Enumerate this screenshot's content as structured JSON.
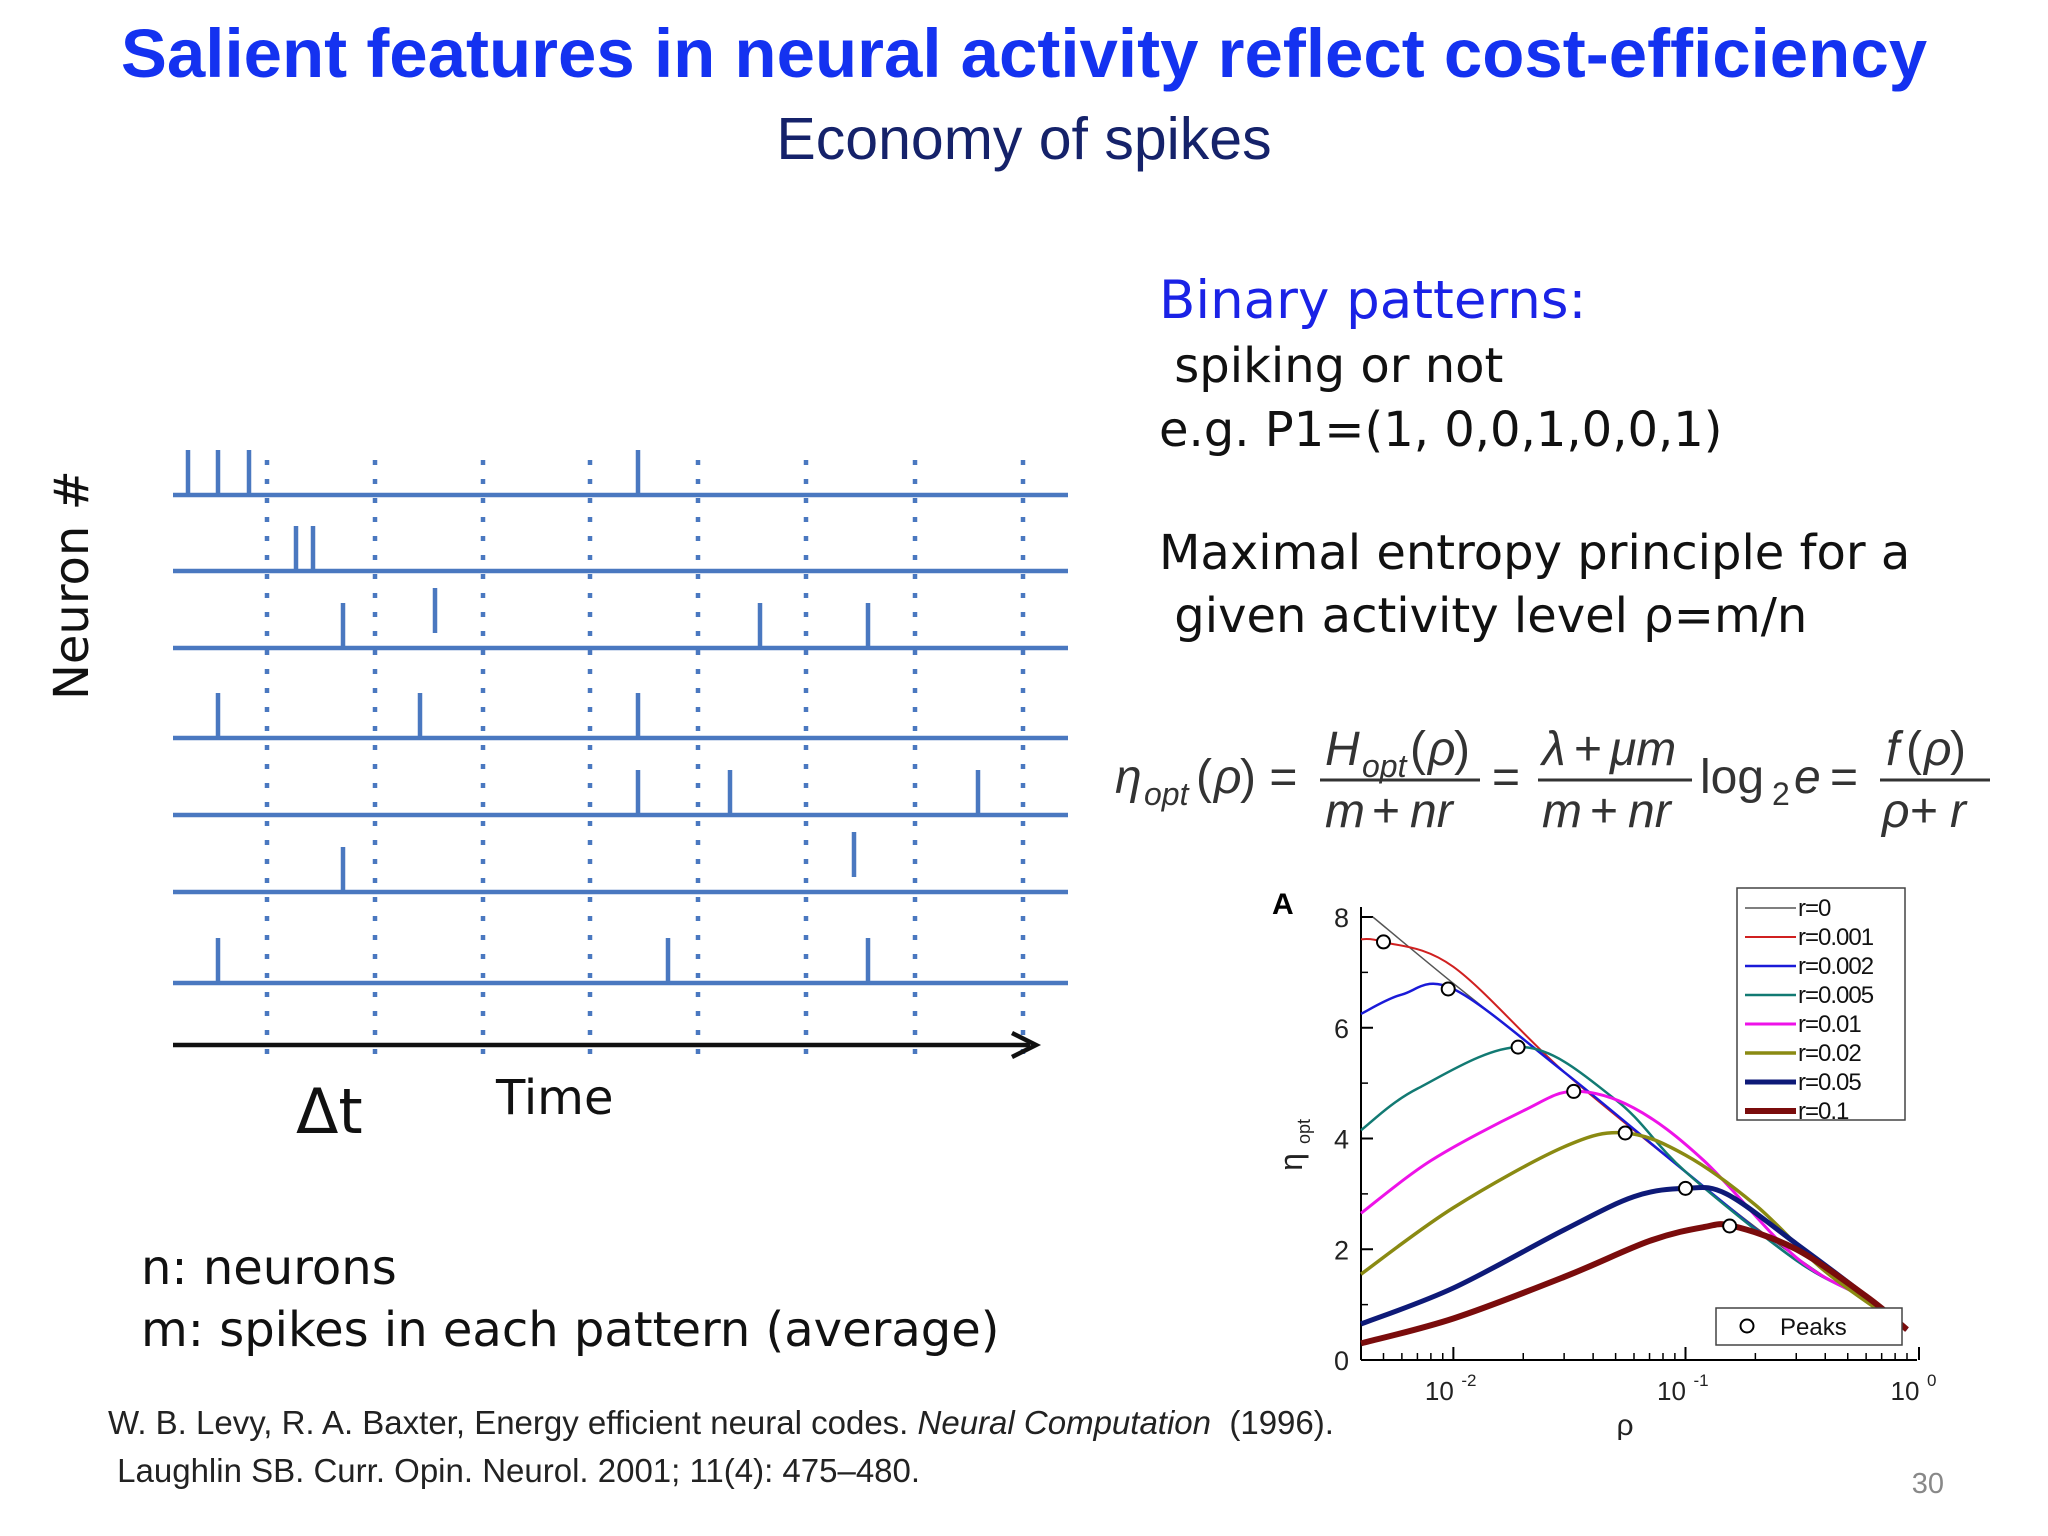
{
  "slide": {
    "title": "Salient features in neural activity reflect cost-efficiency",
    "subtitle": "Economy of spikes",
    "page_number": "30"
  },
  "raster": {
    "y_label": "Neuron #",
    "x_label": "Time",
    "bin_label": "Δt",
    "neuron_count": 7,
    "spike_color": "#4a78c0",
    "axis_color": "#111111"
  },
  "right_text": {
    "heading": "Binary patterns:",
    "line1": " spiking or not",
    "line2": "e.g. P1=(1, 0,0,1,0,0,1)",
    "line3": "Maximal entropy principle for a",
    "line4": " given activity level ρ=m/n"
  },
  "definitions": {
    "n": "n: neurons",
    "m": "m: spikes in each pattern (average)"
  },
  "citations": {
    "c1_pre": "W. B. Levy, R. A. Baxter, Energy efficient neural codes. ",
    "c1_journal": "Neural Computation",
    "c1_post": "  (1996).",
    "c2": " Laughlin SB. Curr. Opin. Neurol. 2001; 11(4): 475–480."
  },
  "chart_data": {
    "type": "line",
    "panel_label": "A",
    "xlabel": "ρ",
    "ylabel": "η",
    "ylabel_sub": "opt",
    "x_scale": "log",
    "xlim": [
      0.004,
      0.9
    ],
    "ylim": [
      0,
      8
    ],
    "y_ticks": [
      "0",
      "2",
      "4",
      "6",
      "8"
    ],
    "x_ticks": [
      {
        "base": "10",
        "exp": "-2"
      },
      {
        "base": "10",
        "exp": "-1"
      },
      {
        "base": "10",
        "exp": "0"
      }
    ],
    "legend_position": "top-right",
    "series": [
      {
        "name": "r=0",
        "color": "#555555",
        "x": [
          0.0045,
          0.01,
          0.03,
          0.1,
          0.2,
          0.4,
          0.6,
          0.8
        ],
        "y": [
          8.0,
          6.8,
          5.2,
          3.4,
          2.4,
          1.5,
          1.1,
          0.65
        ]
      },
      {
        "name": "r=0.001",
        "color": "#d02020",
        "x": [
          0.004,
          0.005,
          0.01,
          0.03,
          0.1,
          0.3,
          0.6,
          0.9
        ],
        "y": [
          7.6,
          7.55,
          7.1,
          5.2,
          3.4,
          1.8,
          1.1,
          0.55
        ]
      },
      {
        "name": "r=0.002",
        "color": "#1a1ad8",
        "x": [
          0.004,
          0.006,
          0.01,
          0.03,
          0.1,
          0.3,
          0.6,
          0.9
        ],
        "y": [
          6.25,
          6.6,
          6.7,
          5.2,
          3.4,
          1.8,
          1.1,
          0.55
        ]
      },
      {
        "name": "r=0.005",
        "color": "#127a73",
        "x": [
          0.004,
          0.007,
          0.02,
          0.05,
          0.1,
          0.3,
          0.6,
          0.9
        ],
        "y": [
          4.15,
          4.9,
          5.65,
          4.7,
          3.4,
          1.8,
          1.1,
          0.55
        ]
      },
      {
        "name": "r=0.01",
        "color": "#ee12e8",
        "x": [
          0.004,
          0.008,
          0.02,
          0.033,
          0.06,
          0.12,
          0.3,
          0.6,
          0.9
        ],
        "y": [
          2.65,
          3.6,
          4.5,
          4.85,
          4.55,
          3.6,
          1.85,
          1.1,
          0.55
        ]
      },
      {
        "name": "r=0.02",
        "color": "#8a8a12",
        "x": [
          0.004,
          0.01,
          0.03,
          0.055,
          0.1,
          0.2,
          0.4,
          0.9
        ],
        "y": [
          1.55,
          2.75,
          3.85,
          4.1,
          3.7,
          2.8,
          1.6,
          0.55
        ]
      },
      {
        "name": "r=0.05",
        "color": "#0e1a78",
        "x": [
          0.004,
          0.01,
          0.03,
          0.06,
          0.1,
          0.15,
          0.3,
          0.6,
          0.9
        ],
        "y": [
          0.65,
          1.3,
          2.35,
          2.95,
          3.1,
          3.0,
          2.1,
          1.15,
          0.55
        ]
      },
      {
        "name": "r=0.1",
        "color": "#7a0c0c",
        "x": [
          0.004,
          0.01,
          0.03,
          0.07,
          0.12,
          0.16,
          0.3,
          0.6,
          0.9
        ],
        "y": [
          0.3,
          0.75,
          1.5,
          2.15,
          2.4,
          2.42,
          2.0,
          1.15,
          0.55
        ]
      }
    ],
    "peaks": {
      "label": "Peaks",
      "x": [
        0.005,
        0.0095,
        0.019,
        0.033,
        0.055,
        0.1,
        0.155
      ],
      "y": [
        7.55,
        6.7,
        5.65,
        4.85,
        4.1,
        3.1,
        2.42
      ]
    }
  }
}
